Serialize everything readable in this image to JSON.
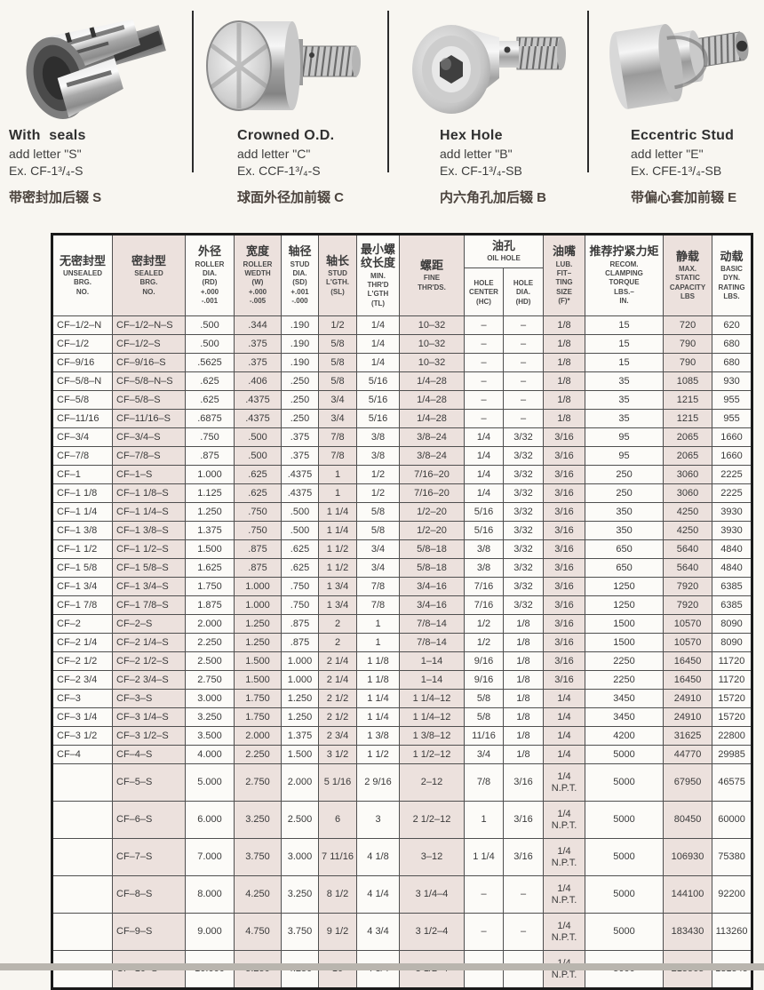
{
  "colors": {
    "page_bg": "#f8f6f1",
    "row_shade": "#ece1dd",
    "grid_line": "#4f4f4f",
    "outer_border": "#1a1a1a"
  },
  "products": [
    {
      "name": "With  seals",
      "add_letter": "add letter \"S\"",
      "example": "Ex. CF-1³/₄-S",
      "caption_zh": "带密封加后辍 S"
    },
    {
      "name": "Crowned O.D.",
      "add_letter": "add letter \"C\"",
      "example": "Ex. CCF-1³/₄-S",
      "caption_zh": "球面外径加前辍 C"
    },
    {
      "name": "Hex Hole",
      "add_letter": "add letter \"B\"",
      "example": "Ex. CF-1³/₄-SB",
      "caption_zh": "内六角孔加后辍 B"
    },
    {
      "name": "Eccentric Stud",
      "add_letter": "add letter \"E\"",
      "example": "Ex. CFE-1³/₄-SB",
      "caption_zh": "带偏心套加前辍 E"
    }
  ],
  "table": {
    "oil_group": {
      "zh": "油孔",
      "en": "OIL HOLE"
    },
    "tall_from": 24,
    "columns": [
      {
        "zh": "无密封型",
        "en": "UNSEALED\nBRG.\nNO.",
        "shaded": false,
        "width": 68
      },
      {
        "zh": "密封型",
        "en": "SEALED\nBRG.\nNO.",
        "shaded": true,
        "width": 82
      },
      {
        "zh": "外径",
        "en": "ROLLER\nDIA.\n(RD)\n+.000\n-.001",
        "shaded": false,
        "width": 55
      },
      {
        "zh": "宽度",
        "en": "ROLLER\nWEDTH\n(W)\n+.000\n-.005",
        "shaded": true,
        "width": 53
      },
      {
        "zh": "轴径",
        "en": "STUD\nDIA.\n(SD)\n+.001\n-.000",
        "shaded": false,
        "width": 42
      },
      {
        "zh": "轴长",
        "en": "STUD\nL'GTH.\n(SL)",
        "shaded": true,
        "width": 43
      },
      {
        "zh": "最小螺\n纹长度",
        "en": "MIN.\nTHR'D\nL'GTH\n(TL)",
        "shaded": false,
        "width": 48
      },
      {
        "zh": "螺距",
        "en": "FINE\nTHR'DS.",
        "shaded": true,
        "width": 73
      },
      {
        "zh": "",
        "en": "HOLE\nCENTER\n(HC)",
        "shaded": false,
        "width": 44,
        "group": "oil"
      },
      {
        "zh": "",
        "en": "HOLE\nDIA.\n(HD)",
        "shaded": false,
        "width": 45,
        "group": "oil"
      },
      {
        "zh": "油嘴",
        "en": "LUB.\nFIT–\nTING\nSIZE\n(F)*",
        "shaded": true,
        "width": 47
      },
      {
        "zh": "推荐拧紧力矩",
        "en": "RECOM.\nCLAMPING\nTORQUE\nLBS.–\nIN.",
        "shaded": false,
        "width": 88
      },
      {
        "zh": "静载",
        "en": "MAX.\nSTATIC\nCAPACITY\nLBS",
        "shaded": true,
        "width": 55
      },
      {
        "zh": "动载",
        "en": "BASIC\nDYN.\nRATING\nLBS.",
        "shaded": false,
        "width": 45
      }
    ],
    "rows": [
      [
        "CF–1/2–N",
        "CF–1/2–N–S",
        ".500",
        ".344",
        ".190",
        "1/2",
        "1/4",
        "10–32",
        "–",
        "–",
        "1/8",
        "15",
        "720",
        "620"
      ],
      [
        "CF–1/2",
        "CF–1/2–S",
        ".500",
        ".375",
        ".190",
        "5/8",
        "1/4",
        "10–32",
        "–",
        "–",
        "1/8",
        "15",
        "790",
        "680"
      ],
      [
        "CF–9/16",
        "CF–9/16–S",
        ".5625",
        ".375",
        ".190",
        "5/8",
        "1/4",
        "10–32",
        "–",
        "–",
        "1/8",
        "15",
        "790",
        "680"
      ],
      [
        "CF–5/8–N",
        "CF–5/8–N–S",
        ".625",
        ".406",
        ".250",
        "5/8",
        "5/16",
        "1/4–28",
        "–",
        "–",
        "1/8",
        "35",
        "1085",
        "930"
      ],
      [
        "CF–5/8",
        "CF–5/8–S",
        ".625",
        ".4375",
        ".250",
        "3/4",
        "5/16",
        "1/4–28",
        "–",
        "–",
        "1/8",
        "35",
        "1215",
        "955"
      ],
      [
        "CF–11/16",
        "CF–11/16–S",
        ".6875",
        ".4375",
        ".250",
        "3/4",
        "5/16",
        "1/4–28",
        "–",
        "–",
        "1/8",
        "35",
        "1215",
        "955"
      ],
      [
        "CF–3/4",
        "CF–3/4–S",
        ".750",
        ".500",
        ".375",
        "7/8",
        "3/8",
        "3/8–24",
        "1/4",
        "3/32",
        "3/16",
        "95",
        "2065",
        "1660"
      ],
      [
        "CF–7/8",
        "CF–7/8–S",
        ".875",
        ".500",
        ".375",
        "7/8",
        "3/8",
        "3/8–24",
        "1/4",
        "3/32",
        "3/16",
        "95",
        "2065",
        "1660"
      ],
      [
        "CF–1",
        "CF–1–S",
        "1.000",
        ".625",
        ".4375",
        "1",
        "1/2",
        "7/16–20",
        "1/4",
        "3/32",
        "3/16",
        "250",
        "3060",
        "2225"
      ],
      [
        "CF–1 1/8",
        "CF–1 1/8–S",
        "1.125",
        ".625",
        ".4375",
        "1",
        "1/2",
        "7/16–20",
        "1/4",
        "3/32",
        "3/16",
        "250",
        "3060",
        "2225"
      ],
      [
        "CF–1 1/4",
        "CF–1 1/4–S",
        "1.250",
        ".750",
        ".500",
        "1 1/4",
        "5/8",
        "1/2–20",
        "5/16",
        "3/32",
        "3/16",
        "350",
        "4250",
        "3930"
      ],
      [
        "CF–1 3/8",
        "CF–1 3/8–S",
        "1.375",
        ".750",
        ".500",
        "1 1/4",
        "5/8",
        "1/2–20",
        "5/16",
        "3/32",
        "3/16",
        "350",
        "4250",
        "3930"
      ],
      [
        "CF–1 1/2",
        "CF–1 1/2–S",
        "1.500",
        ".875",
        ".625",
        "1 1/2",
        "3/4",
        "5/8–18",
        "3/8",
        "3/32",
        "3/16",
        "650",
        "5640",
        "4840"
      ],
      [
        "CF–1 5/8",
        "CF–1 5/8–S",
        "1.625",
        ".875",
        ".625",
        "1 1/2",
        "3/4",
        "5/8–18",
        "3/8",
        "3/32",
        "3/16",
        "650",
        "5640",
        "4840"
      ],
      [
        "CF–1 3/4",
        "CF–1 3/4–S",
        "1.750",
        "1.000",
        ".750",
        "1 3/4",
        "7/8",
        "3/4–16",
        "7/16",
        "3/32",
        "3/16",
        "1250",
        "7920",
        "6385"
      ],
      [
        "CF–1 7/8",
        "CF–1 7/8–S",
        "1.875",
        "1.000",
        ".750",
        "1 3/4",
        "7/8",
        "3/4–16",
        "7/16",
        "3/32",
        "3/16",
        "1250",
        "7920",
        "6385"
      ],
      [
        "CF–2",
        "CF–2–S",
        "2.000",
        "1.250",
        ".875",
        "2",
        "1",
        "7/8–14",
        "1/2",
        "1/8",
        "3/16",
        "1500",
        "10570",
        "8090"
      ],
      [
        "CF–2 1/4",
        "CF–2 1/4–S",
        "2.250",
        "1.250",
        ".875",
        "2",
        "1",
        "7/8–14",
        "1/2",
        "1/8",
        "3/16",
        "1500",
        "10570",
        "8090"
      ],
      [
        "CF–2 1/2",
        "CF–2 1/2–S",
        "2.500",
        "1.500",
        "1.000",
        "2 1/4",
        "1 1/8",
        "1–14",
        "9/16",
        "1/8",
        "3/16",
        "2250",
        "16450",
        "11720"
      ],
      [
        "CF–2 3/4",
        "CF–2 3/4–S",
        "2.750",
        "1.500",
        "1.000",
        "2 1/4",
        "1 1/8",
        "1–14",
        "9/16",
        "1/8",
        "3/16",
        "2250",
        "16450",
        "11720"
      ],
      [
        "CF–3",
        "CF–3–S",
        "3.000",
        "1.750",
        "1.250",
        "2 1/2",
        "1 1/4",
        "1 1/4–12",
        "5/8",
        "1/8",
        "1/4",
        "3450",
        "24910",
        "15720"
      ],
      [
        "CF–3 1/4",
        "CF–3 1/4–S",
        "3.250",
        "1.750",
        "1.250",
        "2 1/2",
        "1 1/4",
        "1 1/4–12",
        "5/8",
        "1/8",
        "1/4",
        "3450",
        "24910",
        "15720"
      ],
      [
        "CF–3 1/2",
        "CF–3 1/2–S",
        "3.500",
        "2.000",
        "1.375",
        "2 3/4",
        "1 3/8",
        "1 3/8–12",
        "11/16",
        "1/8",
        "1/4",
        "4200",
        "31625",
        "22800"
      ],
      [
        "CF–4",
        "CF–4–S",
        "4.000",
        "2.250",
        "1.500",
        "3 1/2",
        "1 1/2",
        "1 1/2–12",
        "3/4",
        "1/8",
        "1/4",
        "5000",
        "44770",
        "29985"
      ],
      [
        "",
        "CF–5–S",
        "5.000",
        "2.750",
        "2.000",
        "5 1/16",
        "2 9/16",
        "2–12",
        "7/8",
        "3/16",
        "1/4\nN.P.T.",
        "5000",
        "67950",
        "46575"
      ],
      [
        "",
        "CF–6–S",
        "6.000",
        "3.250",
        "2.500",
        "6",
        "3",
        "2 1/2–12",
        "1",
        "3/16",
        "1/4\nN.P.T.",
        "5000",
        "80450",
        "60000"
      ],
      [
        "",
        "CF–7–S",
        "7.000",
        "3.750",
        "3.000",
        "7 11/16",
        "4 1/8",
        "3–12",
        "1 1/4",
        "3/16",
        "1/4\nN.P.T.",
        "5000",
        "106930",
        "75380"
      ],
      [
        "",
        "CF–8–S",
        "8.000",
        "4.250",
        "3.250",
        "8 1/2",
        "4 1/4",
        "3 1/4–4",
        "–",
        "–",
        "1/4\nN.P.T.",
        "5000",
        "144100",
        "92200"
      ],
      [
        "",
        "CF–9–S",
        "9.000",
        "4.750",
        "3.750",
        "9 1/2",
        "4 3/4",
        "3 1/2–4",
        "–",
        "–",
        "1/4\nN.P.T.",
        "5000",
        "183430",
        "113260"
      ],
      [
        "",
        "CF–10–S",
        "10.000",
        "5.250",
        "4.250",
        "10",
        "4 3/4",
        "3 1/2–4",
        "–",
        "–",
        "1/4\nN.P.T.",
        "5000",
        "215565",
        "131545"
      ]
    ]
  }
}
